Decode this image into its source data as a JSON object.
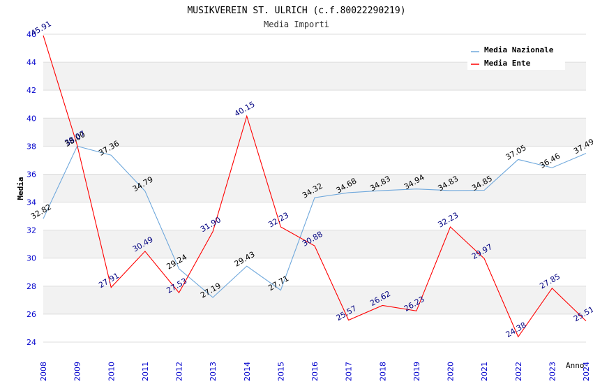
{
  "chart_data": {
    "type": "line",
    "title": "MUSIKVEREIN ST. ULRICH (c.f.80022290219)",
    "subtitle": "Media Importi",
    "xlabel": "Anno",
    "ylabel": "Media",
    "ylim": [
      24,
      46
    ],
    "ytick_step": 2,
    "grid": true,
    "legend_position": "top-right",
    "categories": [
      "2008",
      "2009",
      "2010",
      "2011",
      "2012",
      "2013",
      "2014",
      "2015",
      "2016",
      "2017",
      "2018",
      "2019",
      "2020",
      "2021",
      "2022",
      "2023",
      "2024"
    ],
    "series": [
      {
        "name": "Media Nazionale",
        "color": "#6fa8dc",
        "label_color": "#000000",
        "labels_text": [
          "32.82",
          "38.00",
          "37.36",
          "34.79",
          "29.24",
          "27.19",
          "29.43",
          "27.71",
          "34.32",
          "34.68",
          "34.83",
          "34.94",
          "34.83",
          "34.85",
          "37.05",
          "36.46",
          "37.49"
        ],
        "values": [
          32.82,
          38.0,
          37.36,
          34.79,
          29.24,
          27.19,
          29.43,
          27.71,
          34.32,
          34.68,
          34.83,
          34.94,
          34.83,
          34.85,
          37.05,
          36.46,
          37.49
        ]
      },
      {
        "name": "Media Ente",
        "color": "#ff0000",
        "label_color": "#000080",
        "labels_text": [
          "45.91",
          "38.07",
          "27.91",
          "30.49",
          "27.53",
          "31.90",
          "40.15",
          "32.23",
          "30.88",
          "25.57",
          "26.62",
          "26.23",
          "32.23",
          "29.97",
          "24.38",
          "27.85",
          "25.51"
        ],
        "values": [
          45.91,
          38.07,
          27.91,
          30.49,
          27.53,
          31.9,
          40.15,
          32.23,
          30.88,
          25.57,
          26.62,
          26.23,
          32.23,
          29.97,
          24.38,
          27.85,
          25.51
        ]
      }
    ]
  },
  "colors": {
    "axis_tick_label": "#0000cc",
    "band": "#f2f2f2",
    "gridline": "#dddddd",
    "title": "#000000",
    "subtitle": "#333333"
  }
}
